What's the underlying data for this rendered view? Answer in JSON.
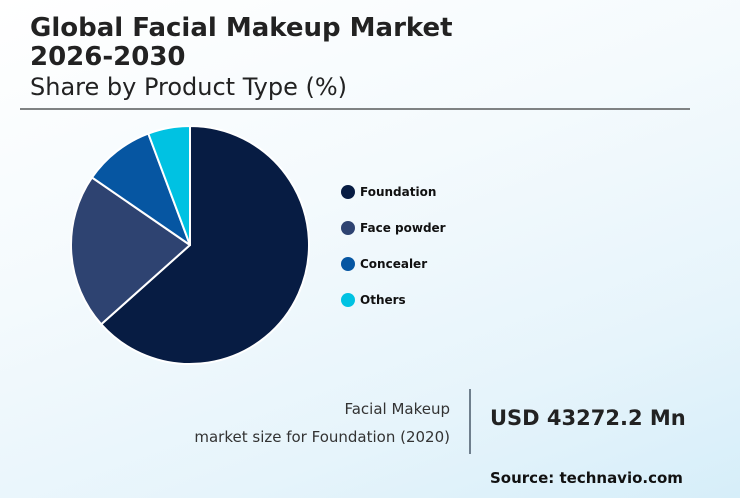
{
  "header": {
    "title_line1": "Global Facial Makeup Market",
    "title_line2": "2026-2030",
    "subtitle": "Share by Product Type (%)"
  },
  "legend": [
    {
      "label": "Foundation",
      "color": "#071c43"
    },
    {
      "label": "Face powder",
      "color": "#2e4371"
    },
    {
      "label": "Concealer",
      "color": "#0656a2"
    },
    {
      "label": "Others",
      "color": "#00c2e2"
    }
  ],
  "stat": {
    "label_line1": "Facial Makeup",
    "label_line2": "market size for Foundation (2020)",
    "value": "USD 43272.2 Mn"
  },
  "source": "Source: technavio.com",
  "chart_data": {
    "type": "pie",
    "title": "Global Facial Makeup Market 2026-2030",
    "subtitle": "Share by Product Type (%)",
    "categories": [
      "Foundation",
      "Face powder",
      "Concealer",
      "Others"
    ],
    "values": [
      63.4,
      21.2,
      9.7,
      5.7
    ],
    "colors": [
      "#071c43",
      "#2e4371",
      "#0656a2",
      "#00c2e2"
    ],
    "start_angle": "12 o'clock, clockwise",
    "legend_position": "right",
    "annotation": "Facial Makeup market size for Foundation (2020): USD 43272.2 Mn"
  }
}
